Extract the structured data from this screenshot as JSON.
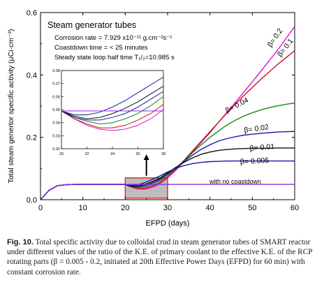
{
  "chart_data": {
    "type": "line",
    "title": "Steam generator tubes",
    "annotations": [
      "Corrosion rate = 7.929 x10⁻¹¹ g.cm⁻²s⁻¹",
      "Coastdown time = < 25 minutes",
      "Steady state loop half time T₁/₂=10.985 s"
    ],
    "xlabel": "EFPD (days)",
    "ylabel": "Total steam genertor specific activity (μCi·cm⁻³)",
    "xlim": [
      0,
      60
    ],
    "ylim": [
      0,
      0.6
    ],
    "xticks": [
      "0",
      "10",
      "20",
      "30",
      "40",
      "50",
      "60"
    ],
    "yticks": [
      "0.0",
      "0.2",
      "0.4",
      "0.6"
    ],
    "grid": false,
    "highlight_region": {
      "x": [
        20,
        30
      ],
      "y": [
        0.005,
        0.07
      ]
    },
    "x": [
      0,
      2,
      4,
      6,
      8,
      10,
      12,
      14,
      16,
      18,
      20,
      21,
      22,
      23,
      24,
      25,
      26,
      27,
      28,
      30,
      32,
      34,
      36,
      38,
      40,
      42,
      44,
      46,
      48,
      50,
      52,
      54,
      56,
      58,
      60
    ],
    "series": [
      {
        "name": "β= 0.2",
        "color": "#e010d0",
        "values": [
          0,
          0.03,
          0.045,
          0.048,
          0.049,
          0.049,
          0.049,
          0.049,
          0.049,
          0.049,
          0.049,
          0.043,
          0.038,
          0.035,
          0.034,
          0.035,
          0.038,
          0.043,
          0.05,
          0.07,
          0.095,
          0.125,
          0.155,
          0.185,
          0.215,
          0.248,
          0.28,
          0.312,
          0.345,
          0.378,
          0.412,
          0.446,
          0.48,
          0.518,
          0.555
        ]
      },
      {
        "name": "β= 0.1",
        "color": "#cc1010",
        "values": [
          0,
          0.03,
          0.045,
          0.048,
          0.049,
          0.049,
          0.049,
          0.049,
          0.049,
          0.049,
          0.049,
          0.043,
          0.039,
          0.036,
          0.036,
          0.038,
          0.042,
          0.047,
          0.054,
          0.074,
          0.099,
          0.128,
          0.158,
          0.188,
          0.218,
          0.248,
          0.278,
          0.306,
          0.334,
          0.36,
          0.386,
          0.41,
          0.434,
          0.456,
          0.478
        ]
      },
      {
        "name": "β= 0.04",
        "color": "#138a13",
        "values": [
          0,
          0.03,
          0.045,
          0.048,
          0.049,
          0.049,
          0.049,
          0.049,
          0.049,
          0.049,
          0.049,
          0.044,
          0.041,
          0.039,
          0.04,
          0.043,
          0.047,
          0.053,
          0.06,
          0.079,
          0.101,
          0.126,
          0.152,
          0.177,
          0.2,
          0.22,
          0.239,
          0.255,
          0.268,
          0.279,
          0.288,
          0.295,
          0.301,
          0.306,
          0.31
        ]
      },
      {
        "name": "β= 0.02",
        "color": "#1a1aa8",
        "values": [
          0,
          0.03,
          0.045,
          0.048,
          0.049,
          0.049,
          0.049,
          0.049,
          0.049,
          0.049,
          0.049,
          0.044,
          0.042,
          0.042,
          0.044,
          0.047,
          0.052,
          0.058,
          0.064,
          0.083,
          0.103,
          0.124,
          0.144,
          0.162,
          0.176,
          0.188,
          0.196,
          0.202,
          0.207,
          0.21,
          0.213,
          0.215,
          0.217,
          0.218,
          0.219
        ]
      },
      {
        "name": "β= 0.01",
        "color": "#111111",
        "values": [
          0,
          0.03,
          0.045,
          0.048,
          0.049,
          0.049,
          0.049,
          0.049,
          0.049,
          0.049,
          0.049,
          0.045,
          0.043,
          0.044,
          0.047,
          0.051,
          0.056,
          0.062,
          0.068,
          0.086,
          0.104,
          0.121,
          0.135,
          0.146,
          0.153,
          0.158,
          0.161,
          0.163,
          0.164,
          0.165,
          0.165,
          0.165,
          0.166,
          0.166,
          0.166
        ]
      },
      {
        "name": "β= 0.005",
        "color": "#1616a0",
        "values": [
          0,
          0.03,
          0.045,
          0.048,
          0.049,
          0.049,
          0.049,
          0.049,
          0.049,
          0.049,
          0.049,
          0.046,
          0.046,
          0.048,
          0.052,
          0.057,
          0.063,
          0.069,
          0.075,
          0.089,
          0.101,
          0.11,
          0.116,
          0.12,
          0.122,
          0.123,
          0.124,
          0.124,
          0.124,
          0.124,
          0.124,
          0.124,
          0.124,
          0.124,
          0.124
        ]
      },
      {
        "name": "with no coastdown",
        "color": "#8a2be2",
        "values": [
          0,
          0.03,
          0.045,
          0.048,
          0.049,
          0.049,
          0.049,
          0.049,
          0.049,
          0.049,
          0.049,
          0.049,
          0.049,
          0.049,
          0.049,
          0.049,
          0.049,
          0.049,
          0.049,
          0.049,
          0.049,
          0.049,
          0.049,
          0.049,
          0.049,
          0.049,
          0.049,
          0.049,
          0.049,
          0.049,
          0.049,
          0.049,
          0.049,
          0.049,
          0.049
        ]
      }
    ],
    "inset": {
      "xlim": [
        20,
        28
      ],
      "ylim": [
        0.02,
        0.08
      ],
      "xticks": [
        "20",
        "22",
        "24",
        "26",
        "28"
      ],
      "yticks": [
        "0.02",
        "0.03",
        "0.04",
        "0.05",
        "0.06",
        "0.07",
        "0.08"
      ]
    }
  },
  "caption": {
    "lead": "Fig. 10.",
    "text": "Total specific activity due to colloidal crud in steam generator tubes of SMART reactor under different values of the ratio of the K.E. of primary coolant to the effective K.E. of the RCP rotating parts (β = 0.005 - 0.2, initiated at 20th Effective Power Days (EFPD) for 60 min) with constant corrosion rate."
  }
}
